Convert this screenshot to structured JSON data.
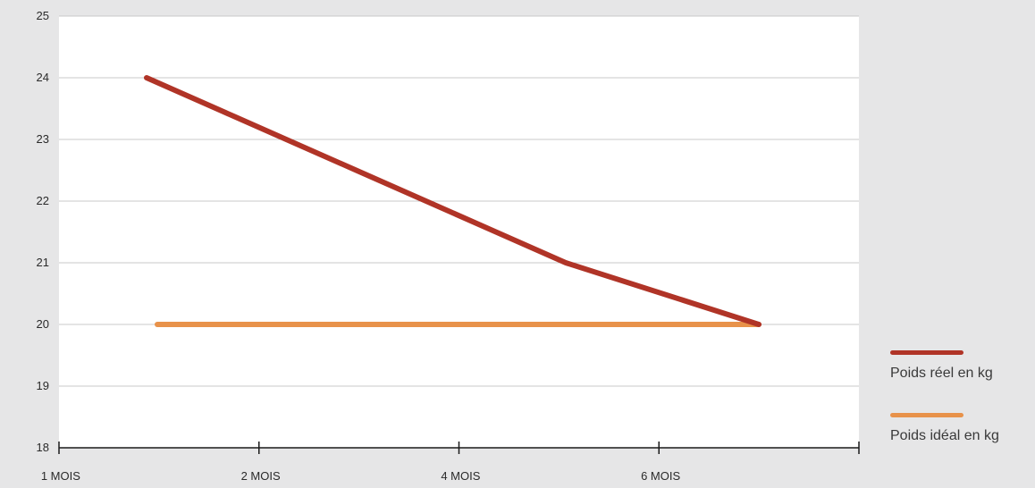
{
  "chart_data": {
    "type": "line",
    "title": "",
    "xlabel": "",
    "ylabel": "",
    "categories": [
      "1 MOIS",
      "2 MOIS",
      "4 MOIS",
      "6 MOIS"
    ],
    "ylim": [
      18,
      25
    ],
    "yticks": [
      18,
      19,
      20,
      21,
      22,
      23,
      24,
      25
    ],
    "grid": "horizontal",
    "legend_position": "bottom-right",
    "series": [
      {
        "name": "Poids réel en kg",
        "color": "#b03427",
        "values": [
          24,
          22.5,
          21,
          20
        ]
      },
      {
        "name": "Poids idéal en kg",
        "color": "#e8924a",
        "values": [
          20,
          20,
          20,
          20
        ]
      }
    ]
  }
}
